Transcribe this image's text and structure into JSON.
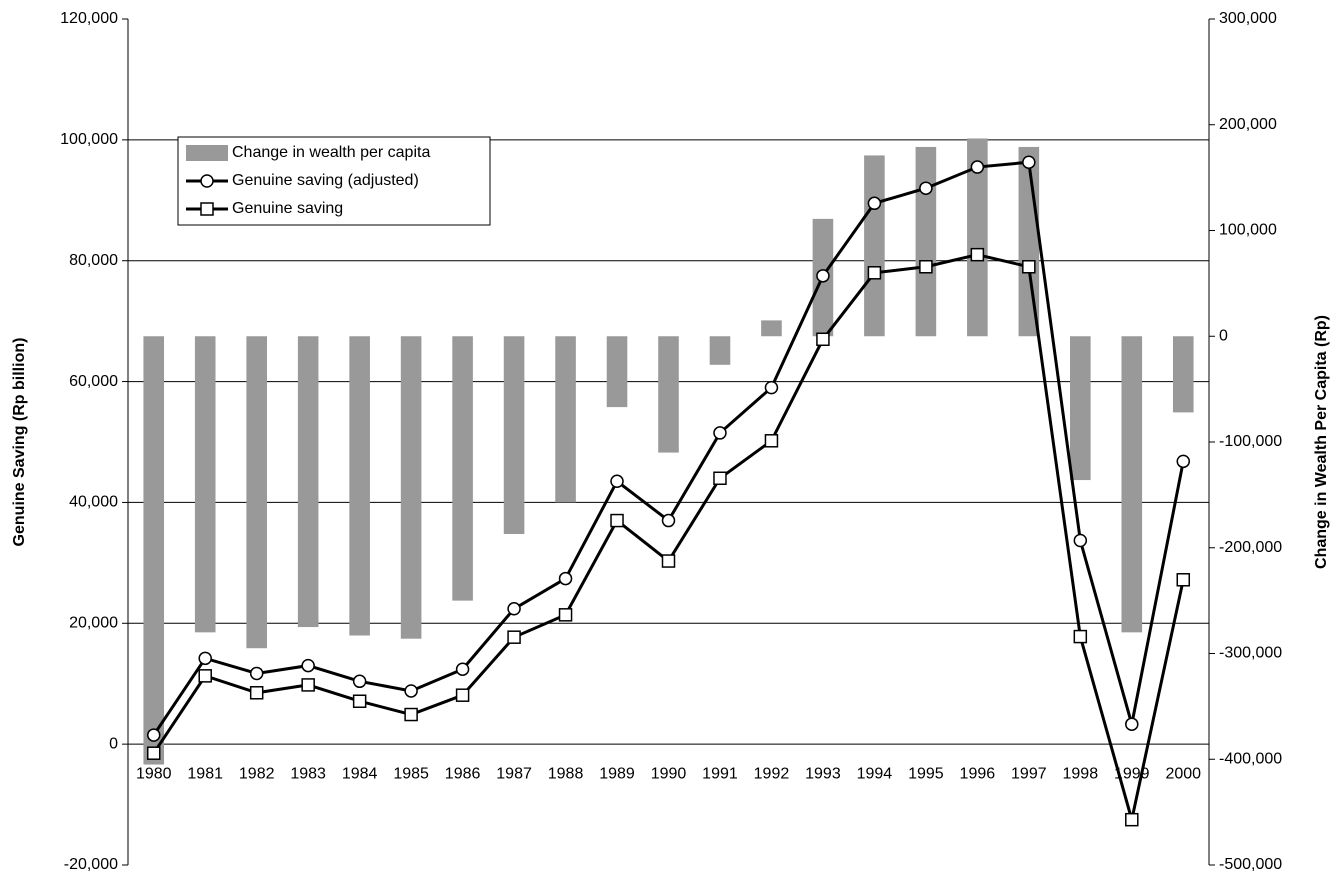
{
  "chart_data": {
    "type": "bar-line",
    "y_label": "Genuine Saving (Rp billion)",
    "y2_label": "Change in Wealth Per Capita (Rp)",
    "categories": [
      "1980",
      "1981",
      "1982",
      "1983",
      "1984",
      "1985",
      "1986",
      "1987",
      "1988",
      "1989",
      "1990",
      "1991",
      "1992",
      "1993",
      "1994",
      "1995",
      "1996",
      "1997",
      "1998",
      "1999",
      "2000"
    ],
    "series": [
      {
        "name": "Change in wealth per capita",
        "type": "bar",
        "axis": "y2",
        "color": "#999999",
        "values": [
          -405000,
          -280000,
          -295000,
          -275000,
          -283000,
          -286000,
          -250000,
          -187000,
          -157000,
          -67000,
          -110000,
          -27000,
          15000,
          111000,
          171000,
          179000,
          187000,
          179000,
          -136000,
          -280000,
          -72000
        ]
      },
      {
        "name": "Genuine saving (adjusted)",
        "type": "line",
        "marker": "circle",
        "color": "#000000",
        "values": [
          1500,
          14200,
          11700,
          13000,
          10400,
          8800,
          12400,
          22400,
          27400,
          43500,
          37000,
          51500,
          59000,
          77500,
          89500,
          92000,
          95500,
          96300,
          33700,
          3300,
          46800
        ]
      },
      {
        "name": "Genuine saving",
        "type": "line",
        "marker": "square",
        "color": "#000000",
        "values": [
          -1500,
          11300,
          8500,
          9800,
          7100,
          4900,
          8100,
          17700,
          21400,
          37000,
          30300,
          44000,
          50200,
          67000,
          78000,
          79000,
          81000,
          79000,
          17800,
          -12500,
          27200
        ]
      }
    ],
    "ylim": [
      -20000,
      120000
    ],
    "yticks": [
      {
        "value": -20000,
        "label": "-20,000"
      },
      0,
      {
        "value": 20000,
        "label": "20,000"
      },
      {
        "value": 40000,
        "label": "40,000"
      },
      {
        "value": 60000,
        "label": "60,000"
      },
      {
        "value": 80000,
        "label": "80,000"
      },
      {
        "value": 100000,
        "label": "100,000"
      },
      {
        "value": 120000,
        "label": "120,000"
      }
    ],
    "y2lim": [
      -500000,
      300000
    ],
    "y2ticks": [
      {
        "value": -500000,
        "label": "-500,000"
      },
      {
        "value": -400000,
        "label": "-400,000"
      },
      {
        "value": -300000,
        "label": "-300,000"
      },
      {
        "value": -200000,
        "label": "-200,000"
      },
      {
        "value": -100000,
        "label": "-100,000"
      },
      0,
      {
        "value": 100000,
        "label": "100,000"
      },
      {
        "value": 200000,
        "label": "200,000"
      },
      {
        "value": 300000,
        "label": "300,000"
      }
    ],
    "grid": true,
    "legend": "upper left"
  }
}
